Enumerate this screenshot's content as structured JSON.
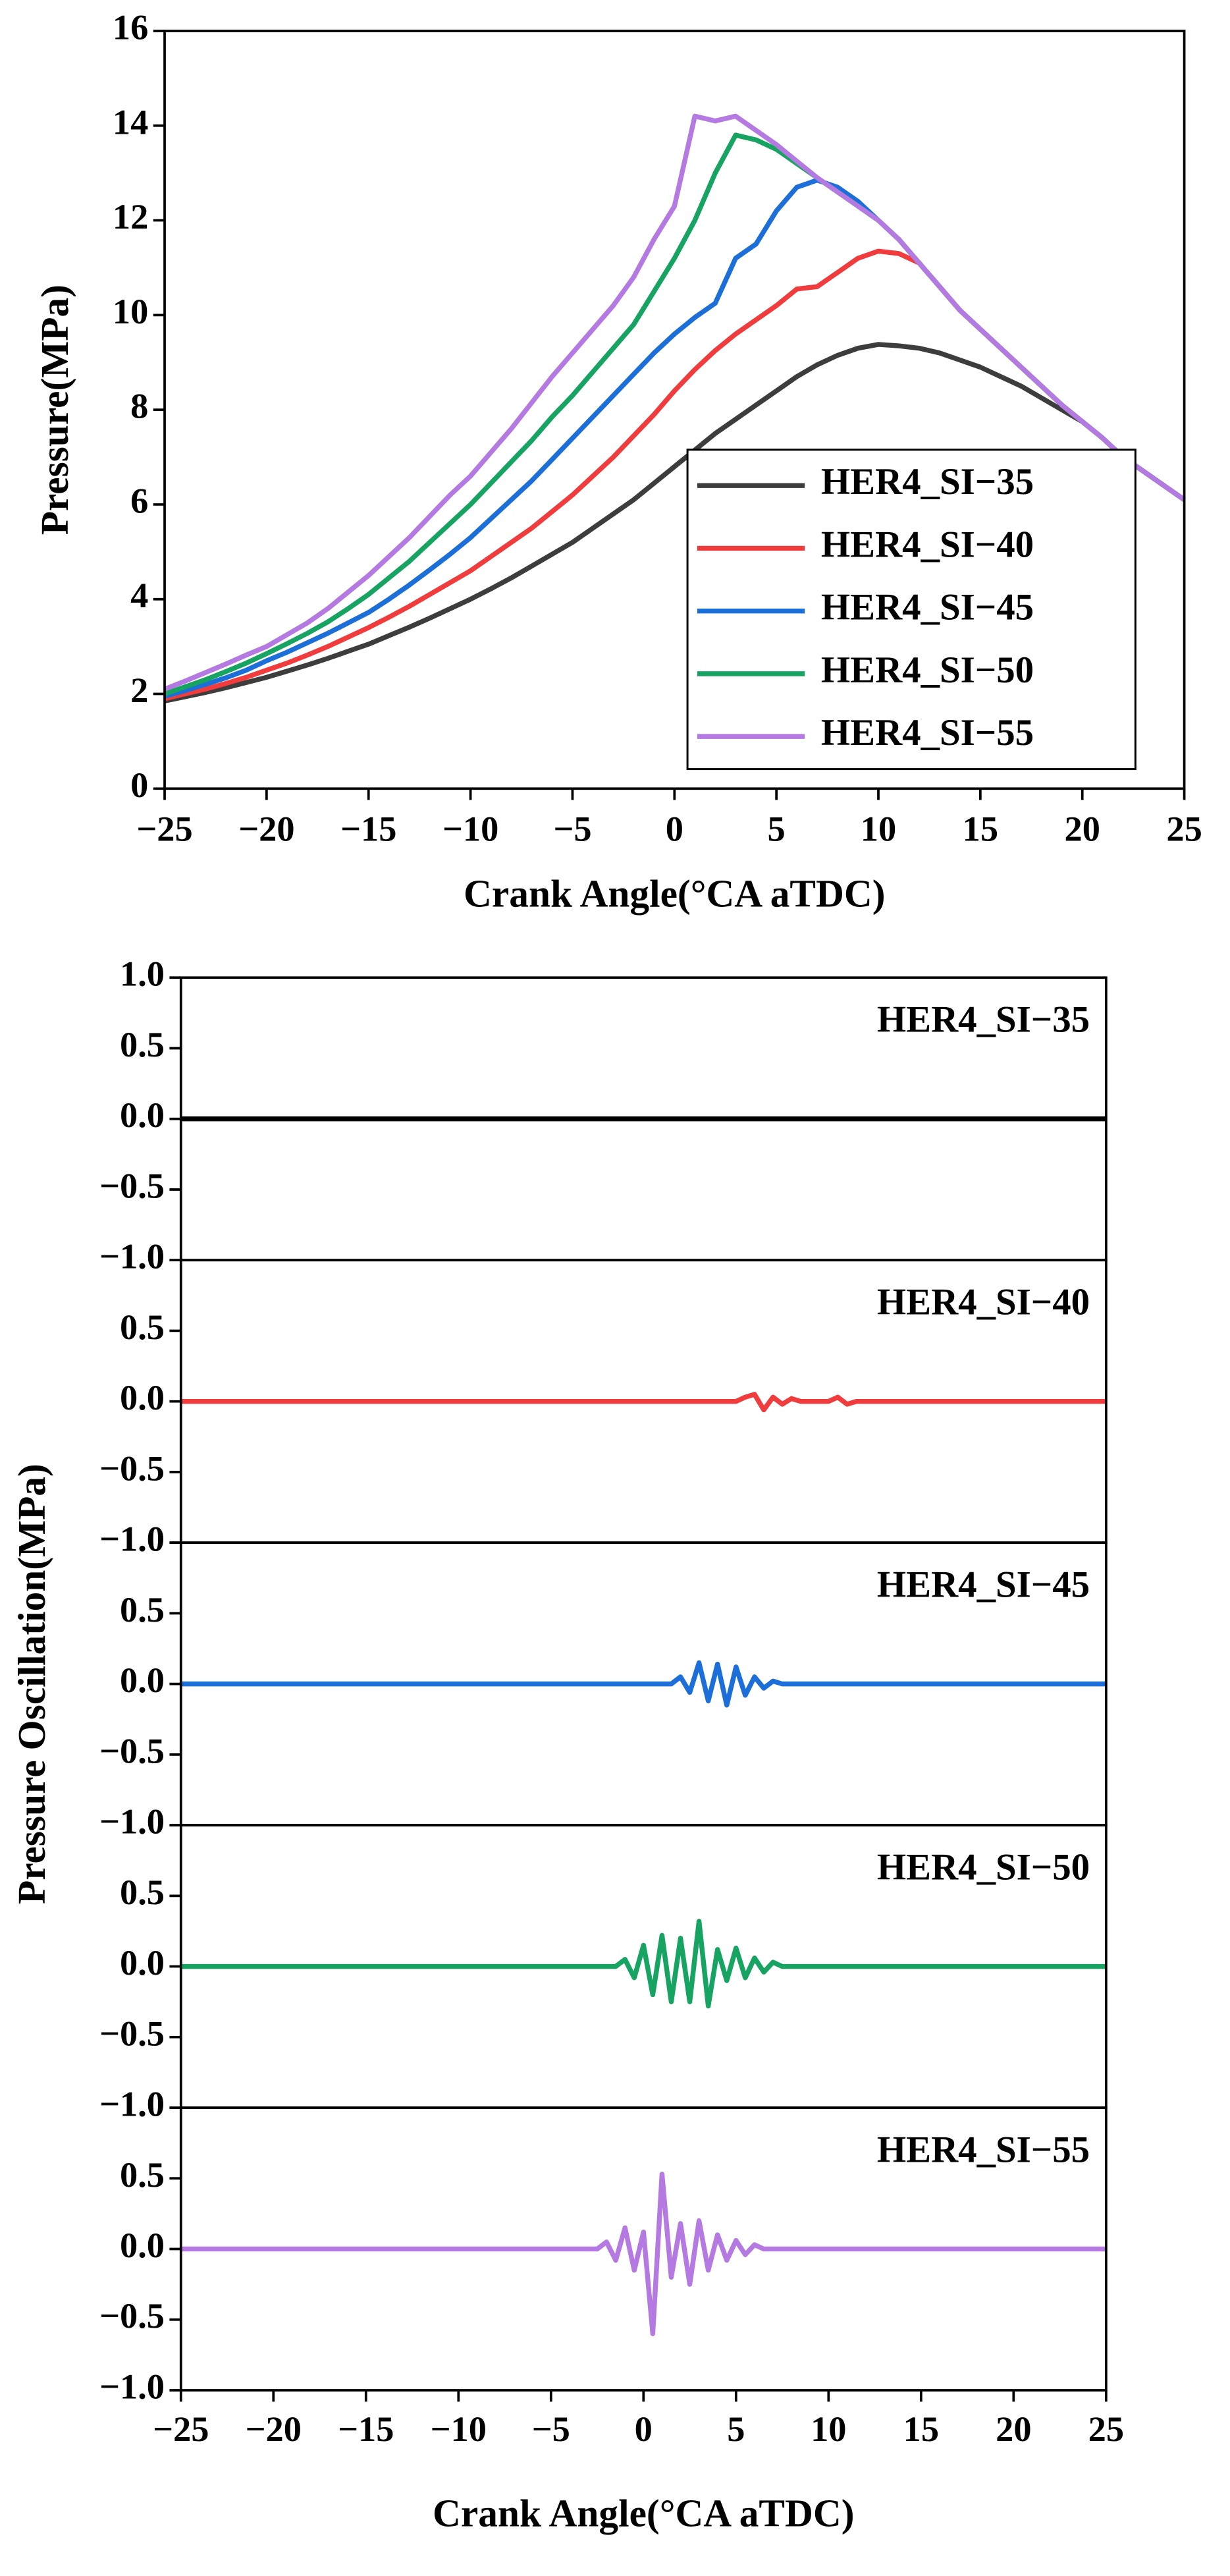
{
  "chart_data": [
    {
      "type": "line",
      "xlabel": "Crank Angle(°CA aTDC)",
      "ylabel": "Pressure(MPa)",
      "xlim": [
        -25,
        25
      ],
      "xticks": [
        {
          "value": -25,
          "label": "−25"
        },
        {
          "value": -20,
          "label": "−20"
        },
        {
          "value": -15,
          "label": "−15"
        },
        {
          "value": -10,
          "label": "−10"
        },
        {
          "value": -5,
          "label": "−5"
        },
        0,
        5,
        10,
        15,
        20,
        25
      ],
      "ylim": [
        0,
        16
      ],
      "yticks": [
        0,
        2,
        4,
        6,
        8,
        10,
        12,
        14,
        16
      ],
      "legend": "lower right",
      "x": [
        -25,
        -24,
        -23,
        -22,
        -21,
        -20,
        -19,
        -18,
        -17,
        -16,
        -15,
        -14,
        -13,
        -12,
        -11,
        -10,
        -9,
        -8,
        -7,
        -6,
        -5,
        -4,
        -3,
        -2,
        -1,
        0,
        1,
        2,
        3,
        4,
        5,
        6,
        7,
        8,
        9,
        10,
        11,
        12,
        13,
        14,
        15,
        16,
        17,
        18,
        19,
        20,
        21,
        22,
        23,
        24,
        25
      ],
      "series": [
        {
          "name": "HER4_SI−35",
          "color": "#3d3d3d",
          "values": [
            1.85,
            1.94,
            2.03,
            2.13,
            2.24,
            2.35,
            2.48,
            2.61,
            2.75,
            2.9,
            3.05,
            3.23,
            3.41,
            3.6,
            3.8,
            4.0,
            4.22,
            4.45,
            4.7,
            4.95,
            5.2,
            5.5,
            5.8,
            6.1,
            6.45,
            6.8,
            7.15,
            7.5,
            7.8,
            8.1,
            8.4,
            8.7,
            8.95,
            9.15,
            9.3,
            9.38,
            9.35,
            9.3,
            9.2,
            9.05,
            8.9,
            8.7,
            8.5,
            8.25,
            8.0,
            7.75,
            7.4,
            7.0,
            6.7,
            6.4,
            6.1
          ]
        },
        {
          "name": "HER4_SI−40",
          "color": "#f03c3c",
          "values": [
            1.9,
            2.0,
            2.1,
            2.22,
            2.35,
            2.5,
            2.65,
            2.82,
            3.0,
            3.2,
            3.4,
            3.62,
            3.85,
            4.1,
            4.35,
            4.6,
            4.9,
            5.2,
            5.5,
            5.85,
            6.2,
            6.6,
            7.0,
            7.45,
            7.9,
            8.4,
            8.85,
            9.25,
            9.6,
            9.9,
            10.2,
            10.55,
            10.6,
            10.9,
            11.2,
            11.35,
            11.3,
            11.1,
            10.6,
            10.1,
            9.7,
            9.3,
            8.9,
            8.5,
            8.1,
            7.75,
            7.4,
            7.0,
            6.7,
            6.4,
            6.1
          ]
        },
        {
          "name": "HER4_SI−45",
          "color": "#1c6fd8",
          "values": [
            1.95,
            2.07,
            2.2,
            2.34,
            2.5,
            2.7,
            2.88,
            3.08,
            3.28,
            3.5,
            3.72,
            4.0,
            4.3,
            4.62,
            4.95,
            5.3,
            5.7,
            6.1,
            6.5,
            6.95,
            7.4,
            7.85,
            8.3,
            8.75,
            9.2,
            9.6,
            9.95,
            10.25,
            11.2,
            11.5,
            12.2,
            12.7,
            12.85,
            12.7,
            12.4,
            12.0,
            11.6,
            11.1,
            10.6,
            10.1,
            9.7,
            9.3,
            8.9,
            8.5,
            8.1,
            7.75,
            7.4,
            7.0,
            6.7,
            6.4,
            6.1
          ]
        },
        {
          "name": "HER4_SI−50",
          "color": "#17a463",
          "values": [
            2.0,
            2.15,
            2.3,
            2.47,
            2.65,
            2.85,
            3.06,
            3.28,
            3.52,
            3.8,
            4.1,
            4.45,
            4.8,
            5.2,
            5.6,
            6.0,
            6.45,
            6.9,
            7.35,
            7.85,
            8.3,
            8.8,
            9.3,
            9.8,
            10.5,
            11.2,
            12.0,
            13.0,
            13.8,
            13.7,
            13.5,
            13.2,
            12.9,
            12.6,
            12.3,
            12.0,
            11.6,
            11.1,
            10.6,
            10.1,
            9.7,
            9.3,
            8.9,
            8.5,
            8.1,
            7.75,
            7.4,
            7.0,
            6.7,
            6.4,
            6.1
          ]
        },
        {
          "name": "HER4_SI−55",
          "color": "#b57ae2",
          "values": [
            2.1,
            2.27,
            2.45,
            2.63,
            2.82,
            3.0,
            3.25,
            3.5,
            3.8,
            4.15,
            4.5,
            4.9,
            5.3,
            5.75,
            6.2,
            6.6,
            7.1,
            7.6,
            8.15,
            8.7,
            9.2,
            9.7,
            10.2,
            10.8,
            11.6,
            12.3,
            14.2,
            14.1,
            14.2,
            13.9,
            13.6,
            13.25,
            12.9,
            12.6,
            12.3,
            12.0,
            11.6,
            11.1,
            10.6,
            10.1,
            9.7,
            9.3,
            8.9,
            8.5,
            8.1,
            7.75,
            7.4,
            7.0,
            6.7,
            6.4,
            6.1
          ]
        }
      ]
    },
    {
      "type": "line",
      "small_multiples": true,
      "xlabel": "Crank Angle(°CA aTDC)",
      "ylabel": "Pressure Oscillation(MPa)",
      "xlim": [
        -25,
        25
      ],
      "xticks": [
        {
          "value": -25,
          "label": "−25"
        },
        {
          "value": -20,
          "label": "−20"
        },
        {
          "value": -15,
          "label": "−15"
        },
        {
          "value": -10,
          "label": "−10"
        },
        {
          "value": -5,
          "label": "−5"
        },
        0,
        5,
        10,
        15,
        20,
        25
      ],
      "ylim": [
        -1,
        1
      ],
      "yticks": [
        {
          "value": -1,
          "label": "−1.0"
        },
        {
          "value": -0.5,
          "label": "−0.5"
        },
        {
          "value": 0,
          "label": "0.0"
        },
        {
          "value": 0.5,
          "label": "0.5"
        },
        {
          "value": 1,
          "label": "1.0"
        }
      ],
      "x": [
        -25,
        -24.5,
        -24,
        -23.5,
        -23,
        -22.5,
        -22,
        -21.5,
        -21,
        -20.5,
        -20,
        -19.5,
        -19,
        -18.5,
        -18,
        -17.5,
        -17,
        -16.5,
        -16,
        -15.5,
        -15,
        -14.5,
        -14,
        -13.5,
        -13,
        -12.5,
        -12,
        -11.5,
        -11,
        -10.5,
        -10,
        -9.5,
        -9,
        -8.5,
        -8,
        -7.5,
        -7,
        -6.5,
        -6,
        -5.5,
        -5,
        -4.5,
        -4,
        -3.5,
        -3,
        -2.5,
        -2,
        -1.5,
        -1,
        -0.5,
        0,
        0.5,
        1,
        1.5,
        2,
        2.5,
        3,
        3.5,
        4,
        4.5,
        5,
        5.5,
        6,
        6.5,
        7,
        7.5,
        8,
        8.5,
        9,
        9.5,
        10,
        10.5,
        11,
        11.5,
        12,
        12.5,
        13,
        13.5,
        14,
        14.5,
        15,
        15.5,
        16,
        16.5,
        17,
        17.5,
        18,
        18.5,
        19,
        19.5,
        20,
        20.5,
        21,
        21.5,
        22,
        22.5,
        23,
        23.5,
        24,
        24.5,
        25
      ],
      "series": [
        {
          "name": "HER4_SI−35",
          "color": "#000000",
          "values": [
            0,
            0,
            0,
            0,
            0,
            0,
            0,
            0,
            0,
            0,
            0,
            0,
            0,
            0,
            0,
            0,
            0,
            0,
            0,
            0,
            0,
            0,
            0,
            0,
            0,
            0,
            0,
            0,
            0,
            0,
            0,
            0,
            0,
            0,
            0,
            0,
            0,
            0,
            0,
            0,
            0,
            0,
            0,
            0,
            0,
            0,
            0,
            0,
            0,
            0,
            0,
            0,
            0,
            0,
            0,
            0,
            0,
            0,
            0,
            0,
            0,
            0,
            0,
            0,
            0,
            0,
            0,
            0,
            0,
            0,
            0,
            0,
            0,
            0,
            0,
            0,
            0,
            0,
            0,
            0,
            0,
            0,
            0,
            0,
            0,
            0,
            0,
            0,
            0,
            0,
            0,
            0,
            0,
            0,
            0,
            0,
            0,
            0,
            0,
            0,
            0
          ]
        },
        {
          "name": "HER4_SI−40",
          "color": "#f03c3c",
          "values": [
            0,
            0,
            0,
            0,
            0,
            0,
            0,
            0,
            0,
            0,
            0,
            0,
            0,
            0,
            0,
            0,
            0,
            0,
            0,
            0,
            0,
            0,
            0,
            0,
            0,
            0,
            0,
            0,
            0,
            0,
            0,
            0,
            0,
            0,
            0,
            0,
            0,
            0,
            0,
            0,
            0,
            0,
            0,
            0,
            0,
            0,
            0,
            0,
            0,
            0,
            0,
            0,
            0,
            0,
            0,
            0,
            0,
            0,
            0,
            0,
            0,
            0.03,
            0.05,
            -0.06,
            0.03,
            -0.02,
            0.02,
            0,
            0,
            0,
            0,
            0.03,
            -0.02,
            0,
            0,
            0,
            0,
            0,
            0,
            0,
            0,
            0,
            0,
            0,
            0,
            0,
            0,
            0,
            0,
            0,
            0,
            0,
            0,
            0,
            0,
            0,
            0,
            0,
            0,
            0,
            0
          ]
        },
        {
          "name": "HER4_SI−45",
          "color": "#1c6fd8",
          "values": [
            0,
            0,
            0,
            0,
            0,
            0,
            0,
            0,
            0,
            0,
            0,
            0,
            0,
            0,
            0,
            0,
            0,
            0,
            0,
            0,
            0,
            0,
            0,
            0,
            0,
            0,
            0,
            0,
            0,
            0,
            0,
            0,
            0,
            0,
            0,
            0,
            0,
            0,
            0,
            0,
            0,
            0,
            0,
            0,
            0,
            0,
            0,
            0,
            0,
            0,
            0,
            0,
            0,
            0,
            0.05,
            -0.06,
            0.15,
            -0.12,
            0.14,
            -0.15,
            0.12,
            -0.08,
            0.05,
            -0.03,
            0.02,
            0,
            0,
            0,
            0,
            0,
            0,
            0,
            0,
            0,
            0,
            0,
            0,
            0,
            0,
            0,
            0,
            0,
            0,
            0,
            0,
            0,
            0,
            0,
            0,
            0,
            0,
            0,
            0,
            0,
            0,
            0,
            0,
            0,
            0,
            0,
            0
          ]
        },
        {
          "name": "HER4_SI−50",
          "color": "#17a463",
          "values": [
            0,
            0,
            0,
            0,
            0,
            0,
            0,
            0,
            0,
            0,
            0,
            0,
            0,
            0,
            0,
            0,
            0,
            0,
            0,
            0,
            0,
            0,
            0,
            0,
            0,
            0,
            0,
            0,
            0,
            0,
            0,
            0,
            0,
            0,
            0,
            0,
            0,
            0,
            0,
            0,
            0,
            0,
            0,
            0,
            0,
            0,
            0,
            0,
            0.05,
            -0.08,
            0.15,
            -0.2,
            0.22,
            -0.25,
            0.2,
            -0.25,
            0.32,
            -0.28,
            0.12,
            -0.1,
            0.13,
            -0.08,
            0.06,
            -0.04,
            0.03,
            0,
            0,
            0,
            0,
            0,
            0,
            0,
            0,
            0,
            0,
            0,
            0,
            0,
            0,
            0,
            0,
            0,
            0,
            0,
            0,
            0,
            0,
            0,
            0,
            0,
            0,
            0,
            0,
            0,
            0,
            0,
            0,
            0,
            0,
            0,
            0
          ]
        },
        {
          "name": "HER4_SI−55",
          "color": "#b57ae2",
          "values": [
            0,
            0,
            0,
            0,
            0,
            0,
            0,
            0,
            0,
            0,
            0,
            0,
            0,
            0,
            0,
            0,
            0,
            0,
            0,
            0,
            0,
            0,
            0,
            0,
            0,
            0,
            0,
            0,
            0,
            0,
            0,
            0,
            0,
            0,
            0,
            0,
            0,
            0,
            0,
            0,
            0,
            0,
            0,
            0,
            0,
            0,
            0.05,
            -0.08,
            0.15,
            -0.15,
            0.12,
            -0.6,
            0.53,
            -0.2,
            0.18,
            -0.25,
            0.2,
            -0.15,
            0.1,
            -0.08,
            0.06,
            -0.04,
            0.03,
            0,
            0,
            0,
            0,
            0,
            0,
            0,
            0,
            0,
            0,
            0,
            0,
            0,
            0,
            0,
            0,
            0,
            0,
            0,
            0,
            0,
            0,
            0,
            0,
            0,
            0,
            0,
            0,
            0,
            0,
            0,
            0,
            0,
            0,
            0,
            0,
            0,
            0
          ]
        }
      ]
    }
  ]
}
